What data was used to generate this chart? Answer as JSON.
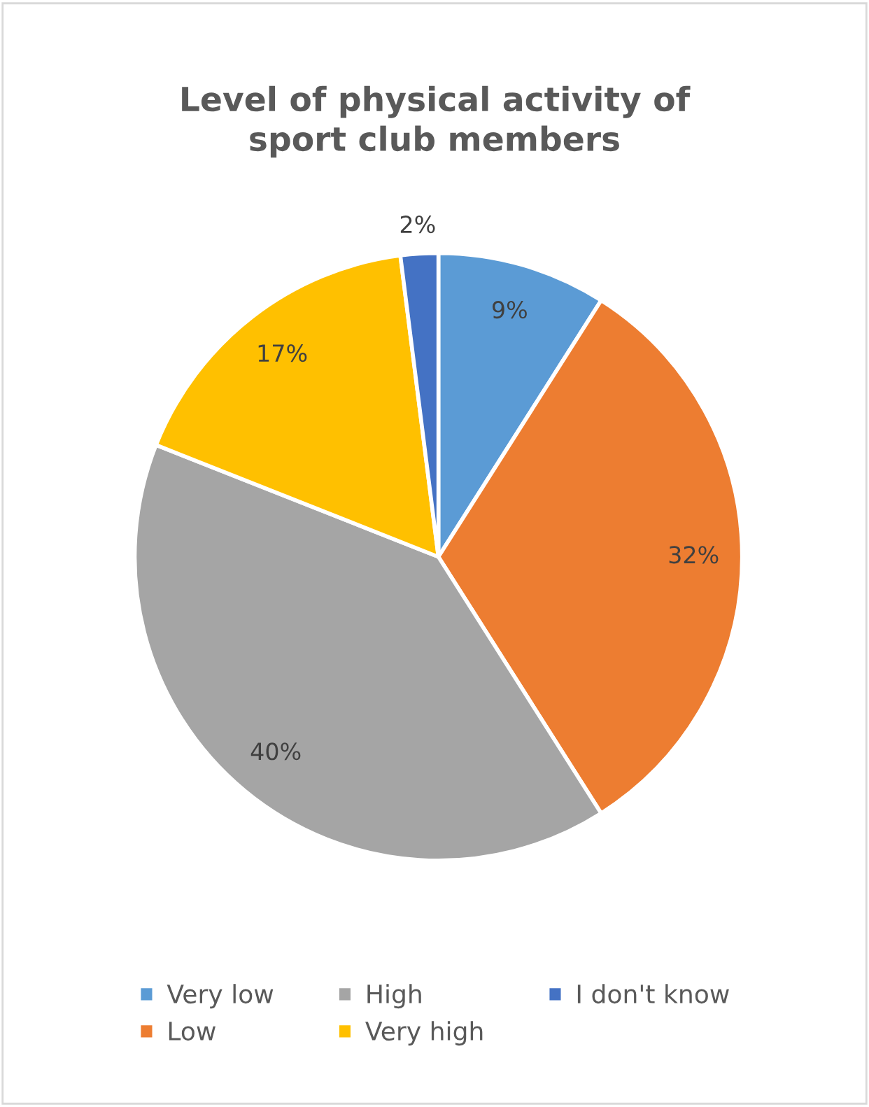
{
  "chart_data": {
    "type": "pie",
    "title": "Level of physical activity of\nsport club members",
    "categories": [
      "Very low",
      "Low",
      "High",
      "Very high",
      "I don't know"
    ],
    "values": [
      9,
      32,
      40,
      17,
      2
    ],
    "colors": [
      "#5b9bd5",
      "#ed7d31",
      "#a5a5a5",
      "#ffc000",
      "#4472c4"
    ],
    "value_labels": [
      "9%",
      "32%",
      "40%",
      "17%",
      "2%"
    ],
    "legend": "bottom"
  }
}
